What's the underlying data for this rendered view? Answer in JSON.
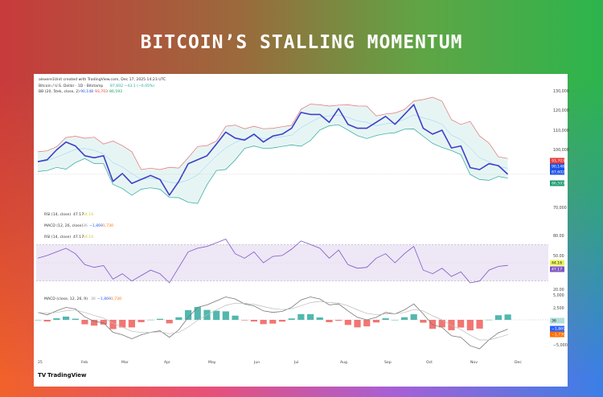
{
  "title": "BITCOIN’S STALLING MOMENTUM",
  "header": {
    "credit": "alexere1Unit created with TradingView.com, Dec 17, 2025 14:23 UTC",
    "symbol": "Bitcoin / U.S. Dollar · 1D · Bitstamp",
    "symbol_value": "87,602 −43.1 (−0.05%)",
    "bb_label": "BB (20, 5tek, close, 2)",
    "bb_values": [
      "90,148",
      "93,703",
      "86,593"
    ]
  },
  "indicator_legends": [
    {
      "label": "RSI (14, close)",
      "v1": "47.17",
      "v2": "44.16"
    },
    {
      "label": "MACD (12, 26, close)",
      "v1": "36",
      "v2": "−1,869",
      "v3": "−1,730"
    },
    {
      "label": "RSI (14, close)",
      "v1": "47.17",
      "v2": "44.16"
    },
    {
      "label": "MACD (close, 12, 26, 9)",
      "v1": "36",
      "v2": "−1,869",
      "v3": "−1,730"
    }
  ],
  "price_axis": [
    "130,000",
    "120,000",
    "110,000",
    "100,000",
    "70,000"
  ],
  "price_tags": [
    {
      "text": "93,703",
      "color": "#e53935"
    },
    {
      "text": "90,148",
      "color": "#1e53e5"
    },
    {
      "text": "87,602",
      "color": "#1e53e5"
    },
    {
      "text": "86,593",
      "color": "#1a9b6c"
    }
  ],
  "rsi_axis": [
    "80.00",
    "50.00",
    "20.00"
  ],
  "rsi_tags": [
    {
      "text": "44.16",
      "color": "#e9f25c"
    },
    {
      "text": "47.17",
      "color": "#7e57c2"
    }
  ],
  "macd_axis": [
    "5,000",
    "2,500",
    "−5,000"
  ],
  "macd_tags": [
    {
      "text": "36",
      "color": "#b2dfdb"
    },
    {
      "text": "−1,869",
      "color": "#2962ff"
    },
    {
      "text": "−1,730",
      "color": "#ff6d00"
    }
  ],
  "months": [
    "25",
    "Feb",
    "Mar",
    "Apr",
    "May",
    "Jun",
    "Jul",
    "Aug",
    "Sep",
    "Oct",
    "Nov",
    "Dec"
  ],
  "logo": "TradingView",
  "colors": {
    "price": "#3f3fc8",
    "bb_upper": "#e57373",
    "bb_lower": "#26a69a",
    "bb_fill": "#e0f2f1",
    "rsi": "#7e57c2",
    "rsi_band": "#ede7f6",
    "macd": "#2962ff",
    "signal": "#ff6d00",
    "hist_pos": "#26a69a",
    "hist_neg": "#ef5350"
  },
  "chart_data": {
    "type": "line",
    "title": "BITCOIN’S STALLING MOMENTUM",
    "ylim": [
      70000,
      130000
    ],
    "dates": [
      "2025-01-01",
      "2025-01-08",
      "2025-01-15",
      "2025-01-22",
      "2025-01-29",
      "2025-02-05",
      "2025-02-12",
      "2025-02-19",
      "2025-02-26",
      "2025-03-05",
      "2025-03-12",
      "2025-03-19",
      "2025-03-26",
      "2025-04-02",
      "2025-04-09",
      "2025-04-16",
      "2025-04-23",
      "2025-04-30",
      "2025-05-07",
      "2025-05-14",
      "2025-05-21",
      "2025-05-28",
      "2025-06-04",
      "2025-06-11",
      "2025-06-18",
      "2025-06-25",
      "2025-07-02",
      "2025-07-09",
      "2025-07-16",
      "2025-07-23",
      "2025-07-30",
      "2025-08-06",
      "2025-08-13",
      "2025-08-20",
      "2025-08-27",
      "2025-09-03",
      "2025-09-10",
      "2025-09-17",
      "2025-09-24",
      "2025-10-01",
      "2025-10-08",
      "2025-10-15",
      "2025-10-22",
      "2025-10-29",
      "2025-11-05",
      "2025-11-12",
      "2025-11-19",
      "2025-11-26",
      "2025-12-03",
      "2025-12-10",
      "2025-12-17"
    ],
    "price": [
      94000,
      95000,
      100000,
      104000,
      102000,
      97000,
      96000,
      97000,
      84000,
      88000,
      83000,
      85000,
      87000,
      85000,
      77000,
      84000,
      93000,
      95000,
      97000,
      103000,
      109000,
      106000,
      105000,
      108000,
      104000,
      107000,
      108000,
      111000,
      119000,
      118000,
      118000,
      114000,
      121000,
      113000,
      111000,
      111000,
      114000,
      117000,
      113000,
      118000,
      123000,
      111000,
      108000,
      110000,
      101000,
      102000,
      91000,
      90000,
      93000,
      92000,
      87602
    ],
    "rsi": [
      55,
      58,
      62,
      66,
      60,
      48,
      45,
      47,
      32,
      38,
      30,
      36,
      42,
      38,
      28,
      45,
      62,
      66,
      68,
      72,
      76,
      60,
      55,
      62,
      50,
      57,
      58,
      65,
      74,
      70,
      66,
      55,
      64,
      48,
      44,
      45,
      55,
      60,
      50,
      60,
      68,
      42,
      38,
      44,
      35,
      40,
      28,
      30,
      42,
      46,
      47.17
    ],
    "rsi_ylim": [
      20,
      80
    ],
    "macd": [
      1500,
      1000,
      1800,
      2500,
      2200,
      600,
      -300,
      -600,
      -2500,
      -3000,
      -3800,
      -3000,
      -2500,
      -2200,
      -3500,
      -2000,
      500,
      2500,
      3000,
      3800,
      4600,
      4200,
      3200,
      2800,
      1800,
      1500,
      1700,
      2500,
      4000,
      4600,
      4200,
      3000,
      3200,
      1800,
      500,
      0,
      500,
      1500,
      1200,
      2000,
      3200,
      1200,
      -1000,
      -1500,
      -3200,
      -3500,
      -5200,
      -5800,
      -4000,
      -2600,
      -1869
    ],
    "macd_ylim": [
      -6000,
      6000
    ]
  }
}
